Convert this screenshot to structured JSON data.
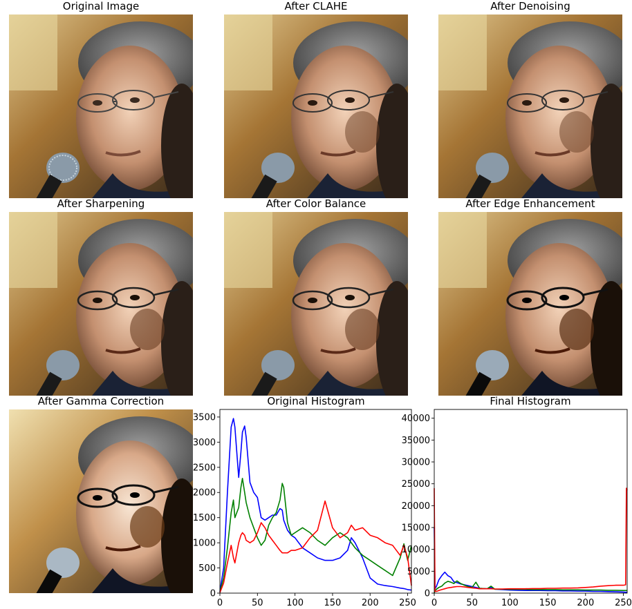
{
  "panels": [
    {
      "title": "Original Image"
    },
    {
      "title": "After CLAHE"
    },
    {
      "title": "After Denoising"
    },
    {
      "title": "After Sharpening"
    },
    {
      "title": "After Color Balance"
    },
    {
      "title": "After Edge Enhancement"
    },
    {
      "title": "After Gamma Correction"
    }
  ],
  "chart_data": [
    {
      "type": "line",
      "title": "Original Histogram",
      "xlabel": "",
      "ylabel": "",
      "xlim": [
        0,
        255
      ],
      "ylim": [
        0,
        3650
      ],
      "xticks": [
        0,
        50,
        100,
        150,
        200,
        250
      ],
      "yticks": [
        0,
        500,
        1000,
        1500,
        2000,
        2500,
        3000,
        3500
      ],
      "ytick_labels": [
        "0",
        "500",
        "1000",
        "1500",
        "2000",
        "2500",
        "3000",
        "3500"
      ],
      "grid": false,
      "x": [
        0,
        5,
        10,
        15,
        18,
        20,
        25,
        28,
        30,
        33,
        35,
        40,
        45,
        50,
        55,
        60,
        65,
        70,
        75,
        80,
        83,
        85,
        90,
        95,
        100,
        110,
        120,
        130,
        140,
        150,
        160,
        170,
        175,
        180,
        190,
        200,
        210,
        220,
        230,
        240,
        245,
        250,
        255
      ],
      "series": [
        {
          "color": "#0000ff",
          "values": [
            30,
            500,
            2000,
            3300,
            3470,
            3300,
            2300,
            2800,
            3200,
            3320,
            3100,
            2200,
            2000,
            1900,
            1500,
            1450,
            1500,
            1550,
            1550,
            1680,
            1650,
            1450,
            1250,
            1150,
            1100,
            900,
            800,
            700,
            650,
            650,
            700,
            850,
            1100,
            1000,
            700,
            300,
            180,
            150,
            130,
            100,
            90,
            70,
            60
          ]
        },
        {
          "color": "#008000",
          "values": [
            20,
            300,
            900,
            1600,
            1850,
            1500,
            1700,
            2100,
            2280,
            2000,
            1800,
            1500,
            1300,
            1100,
            950,
            1050,
            1350,
            1500,
            1600,
            1850,
            2180,
            2100,
            1400,
            1150,
            1200,
            1300,
            1200,
            1050,
            950,
            1100,
            1200,
            1100,
            1000,
            900,
            750,
            650,
            550,
            450,
            350,
            700,
            980,
            650,
            950
          ]
        },
        {
          "color": "#ff0000",
          "values": [
            10,
            200,
            600,
            950,
            700,
            600,
            1000,
            1150,
            1200,
            1150,
            1050,
            1000,
            1050,
            1200,
            1400,
            1300,
            1150,
            1050,
            950,
            850,
            800,
            800,
            800,
            850,
            850,
            900,
            1100,
            1250,
            1830,
            1300,
            1100,
            1200,
            1350,
            1250,
            1300,
            1150,
            1100,
            1000,
            950,
            750,
            950,
            700,
            150
          ]
        }
      ]
    },
    {
      "type": "line",
      "title": "Final Histogram",
      "xlabel": "",
      "ylabel": "",
      "xlim": [
        0,
        255
      ],
      "ylim": [
        0,
        42000
      ],
      "xticks": [
        0,
        50,
        100,
        150,
        200,
        250
      ],
      "yticks": [
        0,
        5000,
        10000,
        15000,
        20000,
        25000,
        30000,
        35000,
        40000
      ],
      "ytick_labels": [
        "0",
        "5000",
        "10000",
        "15000",
        "20000",
        "25000",
        "30000",
        "35000",
        "40000"
      ],
      "grid": false,
      "x": [
        0,
        1,
        3,
        6,
        10,
        14,
        18,
        22,
        26,
        30,
        35,
        40,
        45,
        50,
        55,
        60,
        70,
        75,
        80,
        90,
        100,
        110,
        120,
        130,
        140,
        150,
        160,
        170,
        180,
        190,
        200,
        210,
        220,
        230,
        240,
        250,
        253,
        254,
        255
      ],
      "series": [
        {
          "color": "#0000ff",
          "values": [
            15000,
            1000,
            1600,
            3000,
            4000,
            4800,
            4000,
            3600,
            2600,
            2400,
            2100,
            1900,
            1700,
            1500,
            1300,
            1100,
            1000,
            1300,
            900,
            800,
            700,
            650,
            600,
            600,
            600,
            550,
            550,
            500,
            500,
            450,
            450,
            400,
            400,
            350,
            300,
            250,
            200,
            200,
            200
          ]
        },
        {
          "color": "#008000",
          "values": [
            0,
            500,
            900,
            1300,
            1600,
            2300,
            2700,
            2500,
            2200,
            2800,
            2200,
            1800,
            1500,
            1300,
            2500,
            1100,
            1000,
            1600,
            900,
            900,
            850,
            850,
            850,
            800,
            800,
            800,
            800,
            750,
            750,
            750,
            700,
            700,
            700,
            650,
            650,
            600,
            600,
            600,
            600
          ]
        },
        {
          "color": "#ff0000",
          "values": [
            24000,
            400,
            400,
            600,
            800,
            1000,
            1200,
            1300,
            1400,
            1500,
            1500,
            1400,
            1300,
            1200,
            1100,
            1000,
            1000,
            1000,
            950,
            950,
            1000,
            1000,
            1000,
            1050,
            1050,
            1100,
            1100,
            1150,
            1150,
            1200,
            1300,
            1400,
            1600,
            1700,
            1800,
            1800,
            1900,
            24000,
            23500
          ]
        }
      ]
    }
  ]
}
